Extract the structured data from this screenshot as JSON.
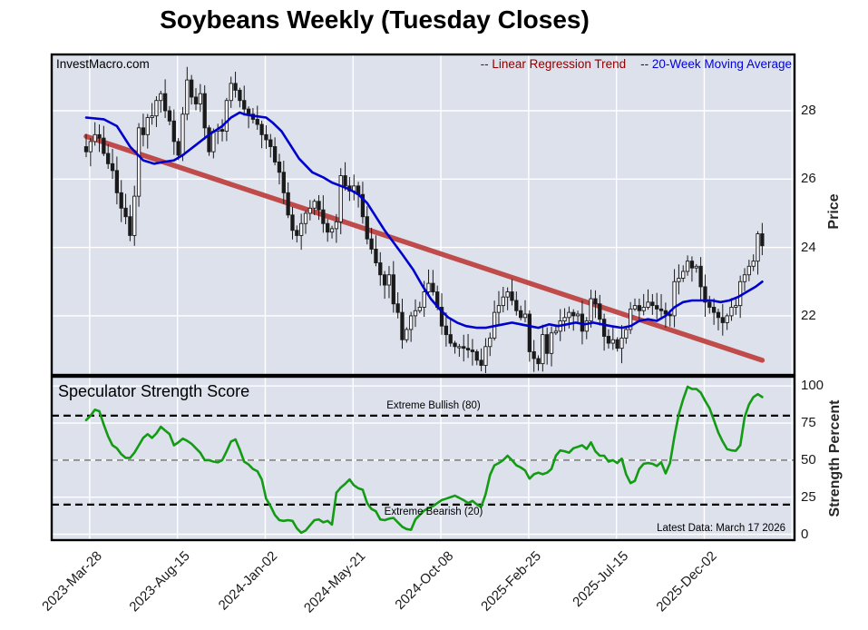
{
  "title": "Soybeans Weekly (Tuesday Closes)",
  "watermark": "InvestMacro.com",
  "legend": {
    "regression_label": "-- Linear Regression Trend",
    "ma_label": "-- 20-Week Moving Average"
  },
  "x_axis": {
    "tick_labels": [
      "2023-Mar-28",
      "2023-Aug-15",
      "2024-Jan-02",
      "2024-May-21",
      "2024-Oct-08",
      "2025-Feb-25",
      "2025-Jul-15",
      "2025-Dec-02"
    ],
    "tick_weeks": [
      0.8,
      20.8,
      40.8,
      60.8,
      80.8,
      100.8,
      120.8,
      140.8
    ],
    "unlabeled_tick_weeks": [
      160.8
    ]
  },
  "price_panel": {
    "ylabel": "Price",
    "y_ticks": [
      28,
      26,
      24,
      22
    ]
  },
  "strength_panel": {
    "title": "Speculator Strength Score",
    "ylabel": "Strength Percent",
    "y_ticks": [
      100,
      75,
      50,
      25,
      0
    ],
    "extreme_bullish_label": "Extreme Bullish (80)",
    "extreme_bearish_label": "Extreme Bearish (20)",
    "extreme_bullish_level": 80,
    "extreme_bearish_level": 20,
    "midline_level": 50,
    "latest_data_label": "Latest Data: March 17 2026"
  },
  "colors": {
    "panel_bg": "#dce1ec",
    "grid": "#ffffff",
    "border": "#000000",
    "text": "#000000",
    "candle": "#1a1a1a",
    "candle_up_fill": "#f7f7fc",
    "ma_line": "#0000cc",
    "regression_line": "#bf4b4b",
    "strength_line": "#149b14",
    "legend_regression": "#8b0000",
    "legend_ma": "#0000e0",
    "dashed_extreme": "#000000",
    "dashed_mid": "#8a8a8a"
  },
  "chart_data": [
    {
      "type": "candlestick",
      "name": "soybeans-weekly-price",
      "title": "Soybeans Weekly (Tuesday Closes)",
      "x_unit": "week",
      "x_start_label": "2023-Mar-28",
      "x_end_label": "2026-Mar-17",
      "ylabel": "Price",
      "ylim": [
        20.3,
        29.6
      ],
      "weekly_closes": [
        26.8,
        27.1,
        27.3,
        27.2,
        26.75,
        26.45,
        26.25,
        25.6,
        25.15,
        24.9,
        24.35,
        25.5,
        27.5,
        27.3,
        27.8,
        27.85,
        28.3,
        28.5,
        28.0,
        27.7,
        27.1,
        26.7,
        27.9,
        28.9,
        28.4,
        28.2,
        28.5,
        27.5,
        26.8,
        27.4,
        27.45,
        27.4,
        28.3,
        28.8,
        28.6,
        28.3,
        28.05,
        27.9,
        27.75,
        27.6,
        27.3,
        27.15,
        26.95,
        26.5,
        26.2,
        25.6,
        24.95,
        24.5,
        24.35,
        24.7,
        25.0,
        25.15,
        25.35,
        25.1,
        24.7,
        24.45,
        24.55,
        24.75,
        26.1,
        25.8,
        25.65,
        25.8,
        25.55,
        24.9,
        24.25,
        23.95,
        23.55,
        23.2,
        22.9,
        23.2,
        22.35,
        22.1,
        21.3,
        21.6,
        22.0,
        22.15,
        22.25,
        22.7,
        22.95,
        22.7,
        22.25,
        21.7,
        21.45,
        21.2,
        21.1,
        21.1,
        21.05,
        21.0,
        20.95,
        20.7,
        20.55,
        21.1,
        21.35,
        22.1,
        22.3,
        22.55,
        22.7,
        22.45,
        22.15,
        21.95,
        22.05,
        20.95,
        20.75,
        20.6,
        21.45,
        20.9,
        21.5,
        21.55,
        21.85,
        21.95,
        22.1,
        22.0,
        22.05,
        21.55,
        21.85,
        22.5,
        22.35,
        21.9,
        21.4,
        21.2,
        21.3,
        21.05,
        21.35,
        21.6,
        22.2,
        22.3,
        22.15,
        22.25,
        22.4,
        22.3,
        22.2,
        22.15,
        22.05,
        22.0,
        23.0,
        23.1,
        23.3,
        23.6,
        23.4,
        23.45,
        22.85,
        22.4,
        22.25,
        22.1,
        21.95,
        21.8,
        22.0,
        22.25,
        22.3,
        23.0,
        23.2,
        23.45,
        23.6,
        24.4,
        24.05
      ],
      "ma20": {
        "type": "line",
        "label": "20-Week Moving Average",
        "anchors": [
          [
            0,
            27.8
          ],
          [
            4,
            27.75
          ],
          [
            7,
            27.55
          ],
          [
            10,
            26.95
          ],
          [
            13,
            26.55
          ],
          [
            15.5,
            26.45
          ],
          [
            17.5,
            26.5
          ],
          [
            20,
            26.55
          ],
          [
            22,
            26.7
          ],
          [
            25,
            27.0
          ],
          [
            28,
            27.3
          ],
          [
            31,
            27.55
          ],
          [
            33,
            27.8
          ],
          [
            35,
            27.95
          ],
          [
            36,
            27.9
          ],
          [
            38,
            27.85
          ],
          [
            41,
            27.8
          ],
          [
            42.5,
            27.65
          ],
          [
            44.5,
            27.4
          ],
          [
            46.5,
            27.0
          ],
          [
            48.5,
            26.6
          ],
          [
            51.5,
            26.2
          ],
          [
            54,
            26.05
          ],
          [
            56,
            25.9
          ],
          [
            58,
            25.8
          ],
          [
            60,
            25.7
          ],
          [
            62,
            25.55
          ],
          [
            64,
            25.3
          ],
          [
            66,
            24.9
          ],
          [
            68,
            24.5
          ],
          [
            70,
            24.15
          ],
          [
            72,
            23.8
          ],
          [
            74.5,
            23.35
          ],
          [
            76.5,
            22.9
          ],
          [
            78.5,
            22.5
          ],
          [
            80.5,
            22.2
          ],
          [
            82.5,
            21.95
          ],
          [
            84.5,
            21.8
          ],
          [
            86.5,
            21.7
          ],
          [
            89,
            21.65
          ],
          [
            91,
            21.65
          ],
          [
            93,
            21.7
          ],
          [
            95,
            21.75
          ],
          [
            97,
            21.8
          ],
          [
            99,
            21.75
          ],
          [
            101,
            21.7
          ],
          [
            103,
            21.65
          ],
          [
            105.5,
            21.75
          ],
          [
            107.5,
            21.7
          ],
          [
            109.5,
            21.75
          ],
          [
            111.5,
            21.8
          ],
          [
            113.5,
            21.75
          ],
          [
            115.5,
            21.8
          ],
          [
            117.5,
            21.75
          ],
          [
            119.5,
            21.7
          ],
          [
            122,
            21.65
          ],
          [
            124,
            21.7
          ],
          [
            126,
            21.85
          ],
          [
            128,
            21.9
          ],
          [
            130,
            21.85
          ],
          [
            132,
            22.0
          ],
          [
            134,
            22.25
          ],
          [
            136,
            22.4
          ],
          [
            138,
            22.45
          ],
          [
            140.5,
            22.45
          ],
          [
            142.5,
            22.45
          ],
          [
            144.5,
            22.4
          ],
          [
            146.5,
            22.45
          ],
          [
            148.5,
            22.55
          ],
          [
            150.5,
            22.7
          ],
          [
            152.5,
            22.85
          ],
          [
            154,
            23.0
          ]
        ]
      },
      "regression": {
        "type": "line",
        "label": "Linear Regression Trend",
        "start_value": 27.25,
        "end_value": 20.7
      }
    },
    {
      "type": "line",
      "name": "speculator-strength-score",
      "title": "Speculator Strength Score",
      "ylabel": "Strength Percent",
      "ylim": [
        0,
        100
      ],
      "reference_lines": [
        {
          "level": 80,
          "label": "Extreme Bullish (80)"
        },
        {
          "level": 50,
          "label": ""
        },
        {
          "level": 20,
          "label": "Extreme Bearish (20)"
        }
      ],
      "values": [
        77,
        80,
        84,
        83,
        74,
        66,
        60,
        58,
        54,
        51.5,
        51.5,
        55,
        60,
        65,
        67.5,
        65,
        68,
        72.5,
        70,
        67.5,
        60,
        62,
        64.5,
        63,
        61,
        58,
        55,
        50,
        50,
        49,
        48.5,
        50,
        56,
        62.5,
        64,
        57,
        49,
        47,
        44,
        42.5,
        37,
        24,
        19,
        13,
        9.5,
        9,
        9.5,
        9,
        4,
        1,
        2.5,
        6,
        9.5,
        10,
        8,
        9,
        6.5,
        28,
        31.5,
        34,
        37,
        33,
        31,
        30,
        21,
        17,
        15.5,
        10,
        9.5,
        10.5,
        11,
        8,
        5,
        3.5,
        3,
        10,
        13,
        16,
        17.5,
        19,
        21,
        23,
        24,
        25,
        26,
        24.5,
        23,
        21,
        22.5,
        20,
        18.5,
        27,
        40,
        46.5,
        48,
        50,
        53,
        50,
        46.5,
        45,
        43,
        37.5,
        40.5,
        41.5,
        40.5,
        41.5,
        44,
        53,
        56.5,
        56,
        55,
        58,
        59,
        60,
        57.5,
        62,
        56,
        53,
        53,
        49,
        50,
        48,
        51,
        40.5,
        34.5,
        36,
        44,
        47.5,
        48,
        47.5,
        46,
        48.5,
        41,
        48,
        66,
        81,
        91,
        99.5,
        98,
        98,
        95.5,
        90,
        85,
        77,
        68.5,
        62.5,
        57.5,
        56.5,
        56.3,
        60,
        79,
        87.5,
        92.5,
        94.5,
        92.5
      ]
    }
  ]
}
